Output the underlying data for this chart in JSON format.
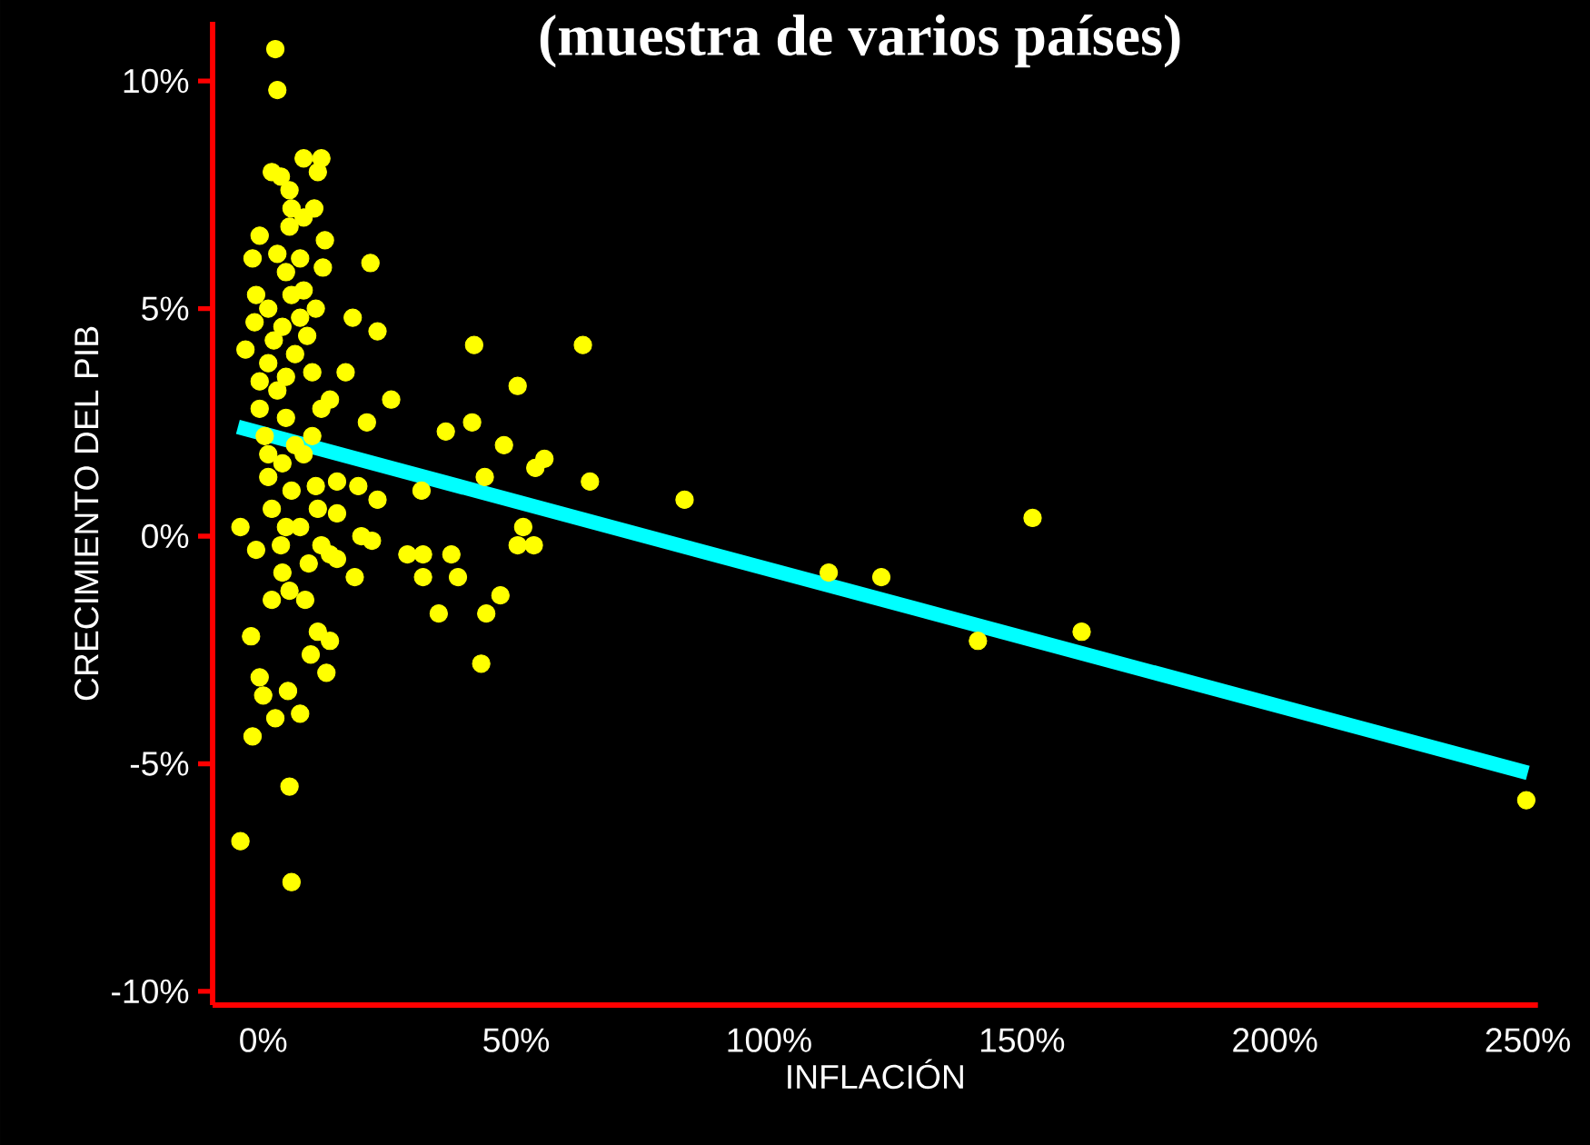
{
  "chart_data": {
    "type": "scatter",
    "title": "(muestra de varios países)",
    "xlabel": "INFLACIÓN",
    "ylabel": "CRECIMIENTO DEL PIB",
    "xlim": [
      -10,
      252
    ],
    "ylim": [
      -10.3,
      11.3
    ],
    "xticks": [
      {
        "value": 0,
        "label": "0%"
      },
      {
        "value": 50,
        "label": "50%"
      },
      {
        "value": 100,
        "label": "100%"
      },
      {
        "value": 150,
        "label": "150%"
      },
      {
        "value": 200,
        "label": "200%"
      },
      {
        "value": 250,
        "label": "250%"
      }
    ],
    "yticks": [
      {
        "value": -10,
        "label": "-10%"
      },
      {
        "value": -5,
        "label": "-5%"
      },
      {
        "value": 0,
        "label": "0%"
      },
      {
        "value": 5,
        "label": "5%"
      },
      {
        "value": 10,
        "label": "10%"
      }
    ],
    "marker": "circle",
    "series": [
      {
        "color": "#ffff00",
        "x": [
          2.4,
          2.8,
          8.0,
          11.5,
          10.8,
          1.7,
          3.5,
          5.6,
          5.2,
          -0.7,
          12.2,
          -2.1,
          7.3,
          11.8,
          21.2,
          -1.4,
          5.6,
          10.4,
          -1.7,
          17.7,
          22.6,
          -3.5,
          2.1,
          8.7,
          16.3,
          4.5,
          25.3,
          13.2,
          20.5,
          41.7,
          63.2,
          50.3,
          41.3,
          36.1,
          47.6,
          55.6,
          53.8,
          64.6,
          10.4,
          14.6,
          18.8,
          22.6,
          31.3,
          43.8,
          51.4,
          50.3,
          53.5,
          -4.5,
          -1.4,
          14.6,
          19.4,
          21.5,
          14.6,
          3.8,
          5.2,
          1.7,
          8.3,
          18.1,
          28.5,
          31.6,
          31.6,
          37.2,
          38.5,
          34.7,
          46.9,
          44.1,
          43.1,
          -2.4,
          10.8,
          13.2,
          9.4,
          12.5,
          -0.7,
          0,
          4.9,
          2.4,
          7.3,
          -2.1,
          5.2,
          -4.5,
          5.6,
          83.3,
          152.1,
          111.8,
          122.2,
          141.3,
          161.8,
          249.7,
          1.0,
          2.8,
          4.5,
          0.3,
          6.3,
          8.0,
          3.8,
          1.0,
          9.7,
          -0.7,
          5.6,
          1.7,
          7.3,
          11.5,
          3.5,
          9.0,
          13.2,
          4.5,
          8.0,
          1.0,
          6.3,
          9.7,
          -0.7,
          11.5,
          3.8,
          7.3,
          2.8,
          8.0,
          5.2,
          10.1,
          1.0,
          4.5,
          10.8
        ],
        "values": [
          10.7,
          9.8,
          8.3,
          8.3,
          8.0,
          8.0,
          7.9,
          7.2,
          6.8,
          6.6,
          6.5,
          6.1,
          6.1,
          5.9,
          6.0,
          5.3,
          5.3,
          5.0,
          4.7,
          4.8,
          4.5,
          4.1,
          4.3,
          4.4,
          3.6,
          3.5,
          3.0,
          3.0,
          2.5,
          4.2,
          4.2,
          3.3,
          2.5,
          2.3,
          2.0,
          1.7,
          1.5,
          1.2,
          1.1,
          1.2,
          1.1,
          0.8,
          1.0,
          1.3,
          0.2,
          -0.2,
          -0.2,
          0.2,
          -0.3,
          0.5,
          0,
          -0.1,
          -0.5,
          -0.8,
          -1.2,
          -1.4,
          -1.4,
          -0.9,
          -0.4,
          -0.4,
          -0.9,
          -0.4,
          -0.9,
          -1.7,
          -1.3,
          -1.7,
          -2.8,
          -2.2,
          -2.1,
          -2.3,
          -2.6,
          -3.0,
          -3.1,
          -3.5,
          -3.4,
          -4.0,
          -3.9,
          -4.4,
          -5.5,
          -6.7,
          -7.6,
          0.8,
          0.4,
          -0.8,
          -0.9,
          -2.3,
          -2.1,
          -5.8,
          3.8,
          3.2,
          2.6,
          2.2,
          2.0,
          1.8,
          1.6,
          1.3,
          2.2,
          2.8,
          1.0,
          0.6,
          0.2,
          -0.2,
          -0.2,
          -0.6,
          -0.4,
          5.8,
          5.4,
          5.0,
          4.0,
          3.6,
          3.4,
          2.8,
          4.6,
          4.8,
          6.2,
          7.0,
          7.6,
          7.2,
          1.8,
          0.2,
          0.6
        ]
      },
      {
        "type": "line",
        "color": "#00ffff",
        "marker": "none",
        "x": [
          -5,
          250
        ],
        "values": [
          2.4,
          -5.2
        ]
      }
    ]
  }
}
